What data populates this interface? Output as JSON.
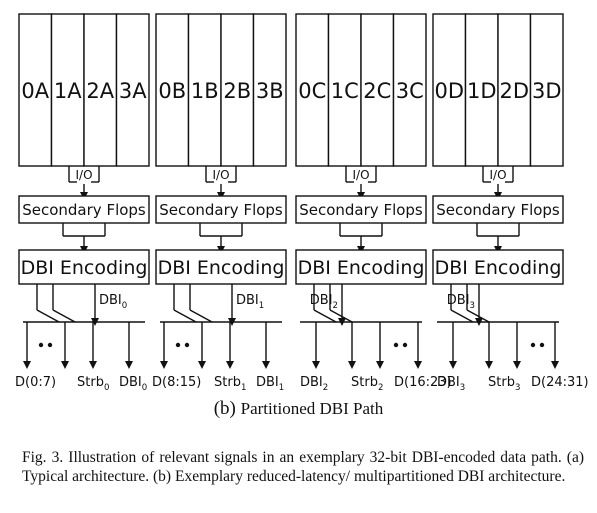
{
  "partitions": [
    {
      "id": "A",
      "cells": [
        "0A",
        "1A",
        "2A",
        "3A"
      ],
      "io_label": "I/O",
      "flops_label": "Secondary Flops",
      "dbi_label": "DBI Encoding",
      "dbi_signal": {
        "base": "DBI",
        "sub": "0"
      },
      "outputs": [
        {
          "base": "D(0:7)",
          "sub": ""
        },
        {
          "base": "Strb",
          "sub": "0"
        },
        {
          "base": "DBI",
          "sub": "0"
        }
      ]
    },
    {
      "id": "B",
      "cells": [
        "0B",
        "1B",
        "2B",
        "3B"
      ],
      "io_label": "I/O",
      "flops_label": "Secondary Flops",
      "dbi_label": "DBI Encoding",
      "dbi_signal": {
        "base": "DBI",
        "sub": "1"
      },
      "outputs": [
        {
          "base": "D(8:15)",
          "sub": ""
        },
        {
          "base": "Strb",
          "sub": "1"
        },
        {
          "base": "DBI",
          "sub": "1"
        }
      ]
    },
    {
      "id": "C",
      "cells": [
        "0C",
        "1C",
        "2C",
        "3C"
      ],
      "io_label": "I/O",
      "flops_label": "Secondary Flops",
      "dbi_label": "DBI Encoding",
      "dbi_signal": {
        "base": "DBI",
        "sub": "2"
      },
      "outputs": [
        {
          "base": "DBI",
          "sub": "2"
        },
        {
          "base": "Strb",
          "sub": "2"
        },
        {
          "base": "D(16:23)",
          "sub": ""
        }
      ]
    },
    {
      "id": "D",
      "cells": [
        "0D",
        "1D",
        "2D",
        "3D"
      ],
      "io_label": "I/O",
      "flops_label": "Secondary Flops",
      "dbi_label": "DBI Encoding",
      "dbi_signal": {
        "base": "DBI",
        "sub": "3"
      },
      "outputs": [
        {
          "base": "DBI",
          "sub": "3"
        },
        {
          "base": "Strb",
          "sub": "3"
        },
        {
          "base": "D(24:31)",
          "sub": ""
        }
      ]
    }
  ],
  "subfigure_label": "(b)",
  "subfigure_title": "Partitioned DBI Path",
  "caption": "Fig. 3.  Illustration of relevant signals in an exemplary 32-bit DBI-encoded data path. (a) Typical architecture. (b) Exemplary reduced-latency/ multipartitioned DBI architecture."
}
